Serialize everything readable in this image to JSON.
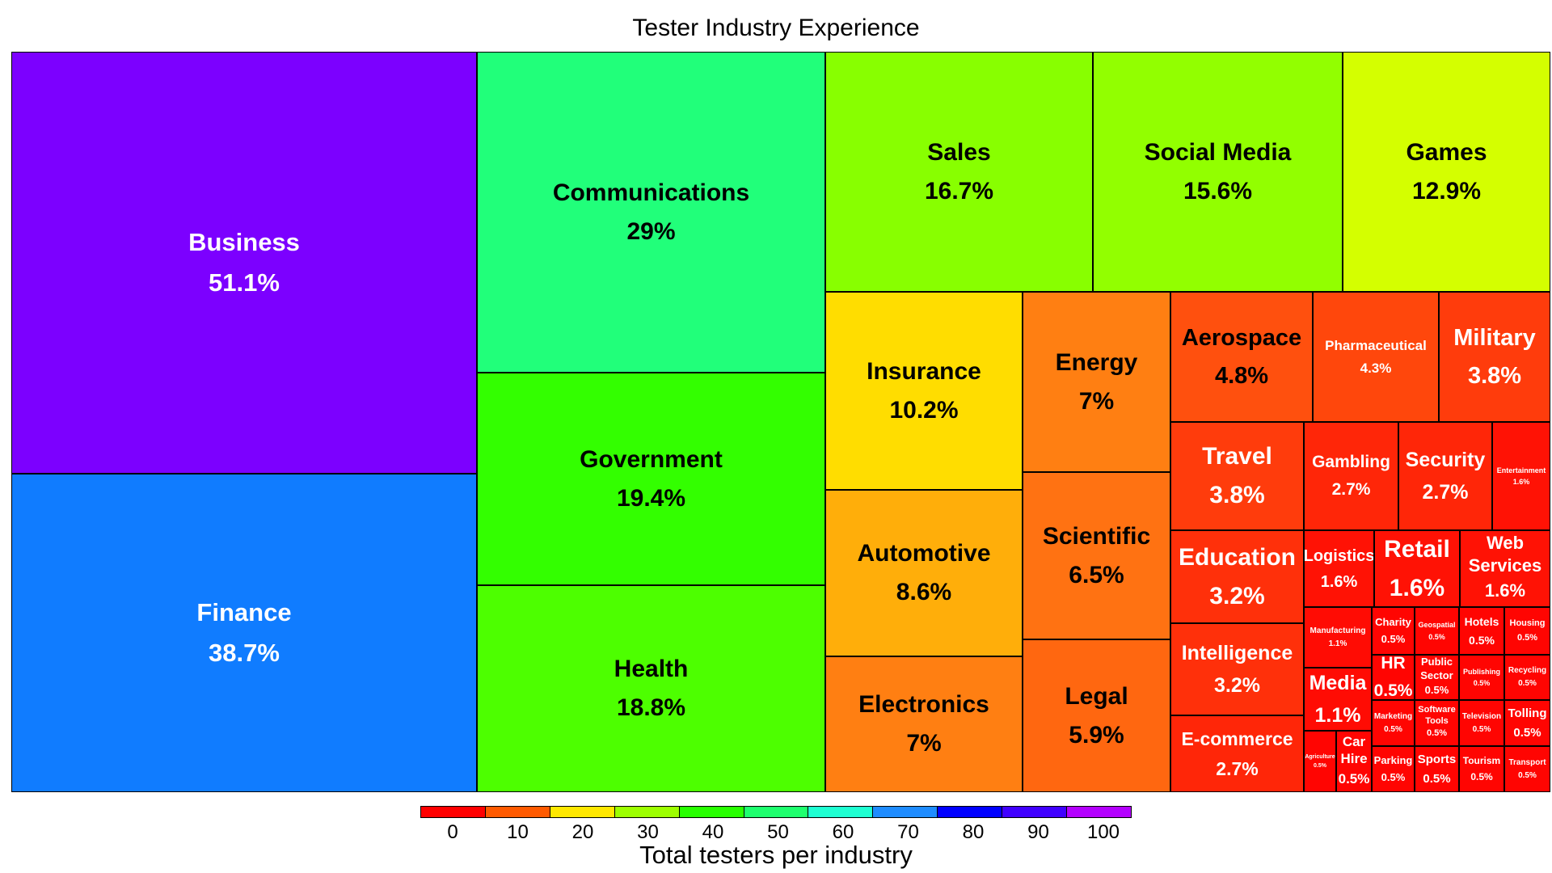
{
  "chart_data": {
    "type": "treemap",
    "title": "Tester Industry Experience",
    "colorbar_label": "Total testers per industry",
    "colorbar_ticks": [
      "0",
      "10",
      "20",
      "30",
      "40",
      "50",
      "60",
      "70",
      "80",
      "90",
      "100"
    ],
    "colorbar_colors": [
      "#ff0000",
      "#ff5a00",
      "#ffe800",
      "#9dff00",
      "#28ff00",
      "#1eff6e",
      "#1effd2",
      "#1e8cff",
      "#0000ff",
      "#4000ff",
      "#b400ff"
    ],
    "items": [
      {
        "name": "Business",
        "value": "51.1%",
        "color": "#7c00ff"
      },
      {
        "name": "Finance",
        "value": "38.7%",
        "color": "#107cff"
      },
      {
        "name": "Communications",
        "value": "29%",
        "color": "#21ff7a"
      },
      {
        "name": "Government",
        "value": "19.4%",
        "color": "#33ff00"
      },
      {
        "name": "Health",
        "value": "18.8%",
        "color": "#4dff00"
      },
      {
        "name": "Sales",
        "value": "16.7%",
        "color": "#88ff00"
      },
      {
        "name": "Social Media",
        "value": "15.6%",
        "color": "#92ff00"
      },
      {
        "name": "Games",
        "value": "12.9%",
        "color": "#d4ff00"
      },
      {
        "name": "Insurance",
        "value": "10.2%",
        "color": "#ffdd00"
      },
      {
        "name": "Automotive",
        "value": "8.6%",
        "color": "#ffae0a"
      },
      {
        "name": "Electronics",
        "value": "7%",
        "color": "#ff7f12"
      },
      {
        "name": "Energy",
        "value": "7%",
        "color": "#ff7f12"
      },
      {
        "name": "Scientific",
        "value": "6.5%",
        "color": "#ff7212"
      },
      {
        "name": "Legal",
        "value": "5.9%",
        "color": "#ff6710"
      },
      {
        "name": "Aerospace",
        "value": "4.8%",
        "color": "#ff500e"
      },
      {
        "name": "Pharmaceutical",
        "value": "4.3%",
        "color": "#ff470c"
      },
      {
        "name": "Military",
        "value": "3.8%",
        "color": "#ff3c0c"
      },
      {
        "name": "Travel",
        "value": "3.8%",
        "color": "#ff3c0c"
      },
      {
        "name": "Education",
        "value": "3.2%",
        "color": "#ff300a"
      },
      {
        "name": "Intelligence",
        "value": "3.2%",
        "color": "#ff300a"
      },
      {
        "name": "E-commerce",
        "value": "2.7%",
        "color": "#ff2608"
      },
      {
        "name": "Gambling",
        "value": "2.7%",
        "color": "#ff2608"
      },
      {
        "name": "Security",
        "value": "2.7%",
        "color": "#ff2608"
      },
      {
        "name": "Entertainment",
        "value": "1.6%",
        "color": "#ff1205"
      },
      {
        "name": "Logistics",
        "value": "1.6%",
        "color": "#ff1205"
      },
      {
        "name": "Retail",
        "value": "1.6%",
        "color": "#ff1205"
      },
      {
        "name": "Web Services",
        "value": "1.6%",
        "color": "#ff1205"
      },
      {
        "name": "Manufacturing",
        "value": "1.1%",
        "color": "#ff0c04"
      },
      {
        "name": "Media",
        "value": "1.1%",
        "color": "#ff0c04"
      },
      {
        "name": "Agriculture",
        "value": "0.5%",
        "color": "#ff0502"
      },
      {
        "name": "Car Hire",
        "value": "0.5%",
        "color": "#ff0502"
      },
      {
        "name": "Charity",
        "value": "0.5%",
        "color": "#ff0502"
      },
      {
        "name": "HR",
        "value": "0.5%",
        "color": "#ff0502"
      },
      {
        "name": "Marketing",
        "value": "0.5%",
        "color": "#ff0502"
      },
      {
        "name": "Parking",
        "value": "0.5%",
        "color": "#ff0502"
      },
      {
        "name": "Geospatial",
        "value": "0.5%",
        "color": "#ff0502"
      },
      {
        "name": "Public Sector",
        "value": "0.5%",
        "color": "#ff0502"
      },
      {
        "name": "Software Tools",
        "value": "0.5%",
        "color": "#ff0502"
      },
      {
        "name": "Sports",
        "value": "0.5%",
        "color": "#ff0502"
      },
      {
        "name": "Hotels",
        "value": "0.5%",
        "color": "#ff0502"
      },
      {
        "name": "Publishing",
        "value": "0.5%",
        "color": "#ff0502"
      },
      {
        "name": "Television",
        "value": "0.5%",
        "color": "#ff0502"
      },
      {
        "name": "Tourism",
        "value": "0.5%",
        "color": "#ff0502"
      },
      {
        "name": "Housing",
        "value": "0.5%",
        "color": "#ff0502"
      },
      {
        "name": "Recycling",
        "value": "0.5%",
        "color": "#ff0502"
      },
      {
        "name": "Tolling",
        "value": "0.5%",
        "color": "#ff0502"
      },
      {
        "name": "Transport",
        "value": "0.5%",
        "color": "#ff0502"
      }
    ]
  }
}
